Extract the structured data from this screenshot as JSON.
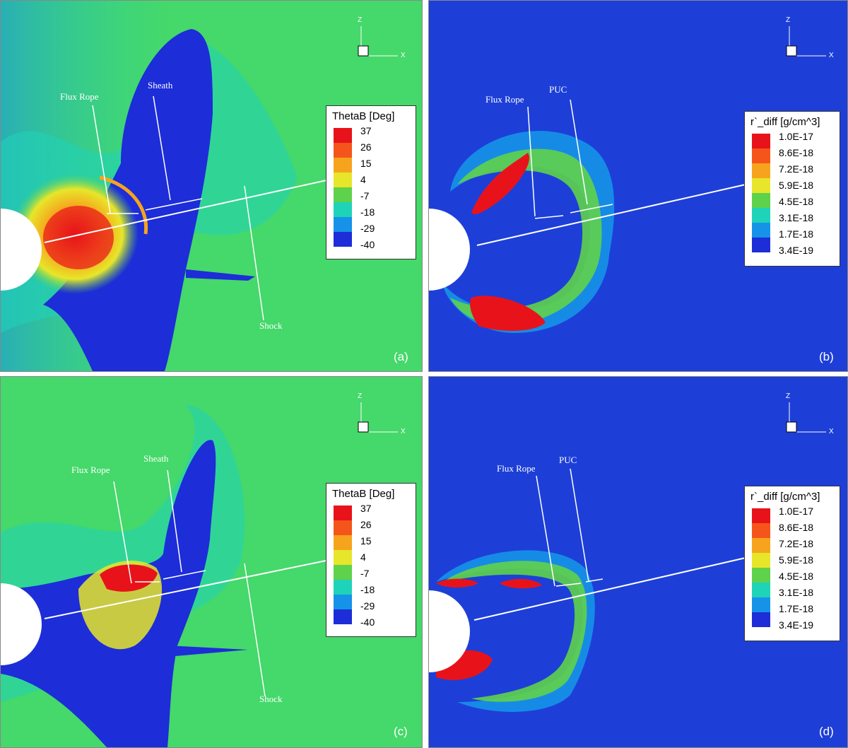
{
  "panels": [
    {
      "id": "a",
      "label": "(a)",
      "kind": "theta",
      "legend": {
        "title": "ThetaB [Deg]",
        "ticks": [
          "37",
          "26",
          "15",
          "4",
          "-7",
          "-18",
          "-29",
          "-40"
        ]
      },
      "annotations": {
        "rope": "Flux Rope",
        "second": "Sheath",
        "shock": "Shock"
      },
      "axes": {
        "z": "Z",
        "x": "X"
      }
    },
    {
      "id": "b",
      "label": "(b)",
      "kind": "rho",
      "legend": {
        "title": "r`_diff [g/cm^3]",
        "ticks": [
          "1.0E-17",
          "8.6E-18",
          "7.2E-18",
          "5.9E-18",
          "4.5E-18",
          "3.1E-18",
          "1.7E-18",
          "3.4E-19"
        ]
      },
      "annotations": {
        "rope": "Flux Rope",
        "second": "PUC"
      },
      "axes": {
        "z": "Z",
        "x": "X"
      }
    },
    {
      "id": "c",
      "label": "(c)",
      "kind": "theta",
      "legend": {
        "title": "ThetaB [Deg]",
        "ticks": [
          "37",
          "26",
          "15",
          "4",
          "-7",
          "-18",
          "-29",
          "-40"
        ]
      },
      "annotations": {
        "rope": "Flux Rope",
        "second": "Sheath",
        "shock": "Shock"
      },
      "axes": {
        "z": "Z",
        "x": "X"
      }
    },
    {
      "id": "d",
      "label": "(d)",
      "kind": "rho",
      "legend": {
        "title": "r`_diff [g/cm^3]",
        "ticks": [
          "1.0E-17",
          "8.6E-18",
          "7.2E-18",
          "5.9E-18",
          "4.5E-18",
          "3.1E-18",
          "1.7E-18",
          "3.4E-19"
        ]
      },
      "annotations": {
        "rope": "Flux Rope",
        "second": "PUC"
      },
      "axes": {
        "z": "Z",
        "x": "X"
      }
    }
  ],
  "colors": {
    "theta_background": "#45d86a",
    "rho_background": "#1d3fd8",
    "colorbar": [
      "#e8131a",
      "#f5551a",
      "#f6a41d",
      "#e7e62a",
      "#5fd24b",
      "#1fd3b9",
      "#1693e8",
      "#1d2dd8"
    ]
  }
}
